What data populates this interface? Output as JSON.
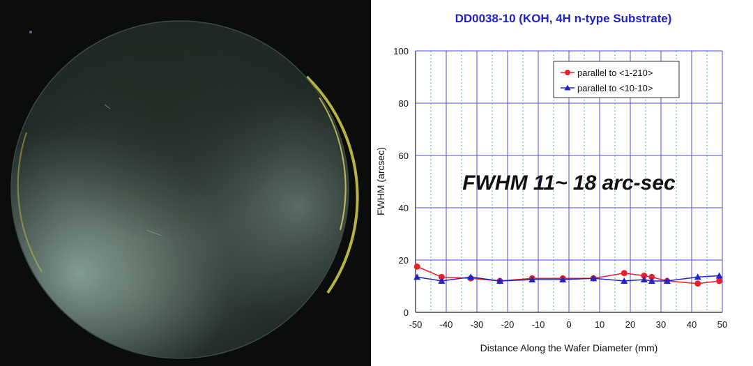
{
  "chart_data": {
    "type": "line",
    "title": "DD0038-10 (KOH, 4H n-type Substrate)",
    "xlabel": "Distance Along the Wafer Diameter (mm)",
    "ylabel": "FWHM (arcsec)",
    "xlim": [
      -50,
      50
    ],
    "ylim": [
      0,
      100
    ],
    "xticks": [
      -50,
      -40,
      -30,
      -20,
      -10,
      0,
      10,
      20,
      30,
      40,
      50
    ],
    "yticks": [
      0,
      20,
      40,
      60,
      80,
      100
    ],
    "grid": true,
    "legend_position": "top-right",
    "annotation": "FWHM 11~ 18 arc-sec",
    "series": [
      {
        "name": "parallel to <1-210>",
        "color": "#e8202a",
        "marker": "circle",
        "x": [
          -49.5,
          -41.5,
          -32,
          -22.5,
          -12,
          -2,
          8,
          18,
          24.5,
          27,
          32,
          42,
          49
        ],
        "y": [
          17.5,
          13.5,
          13,
          12,
          13,
          13,
          13,
          15,
          14,
          13.5,
          12,
          11,
          12
        ]
      },
      {
        "name": "parallel to <10-10>",
        "color": "#1f23c8",
        "marker": "triangle",
        "x": [
          -49.5,
          -41.5,
          -32,
          -22.5,
          -12,
          -2,
          8,
          18,
          24.5,
          27,
          32,
          42,
          49
        ],
        "y": [
          13.5,
          12,
          13.5,
          12,
          12.5,
          12.5,
          13,
          12,
          12.5,
          12,
          12,
          13.5,
          14
        ]
      }
    ]
  }
}
